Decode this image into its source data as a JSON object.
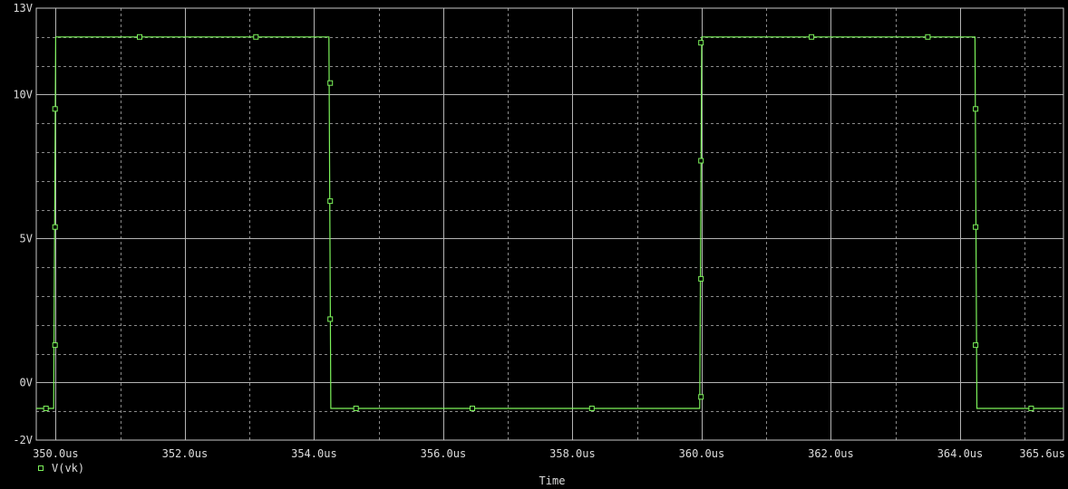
{
  "chart_data": {
    "type": "line",
    "xlabel": "Time",
    "ylabel": "",
    "xlim": [
      349.7,
      365.6
    ],
    "ylim": [
      -2,
      13
    ],
    "x_ticks": [
      {
        "value": 350.0,
        "label": "350.0us"
      },
      {
        "value": 352.0,
        "label": "352.0us"
      },
      {
        "value": 354.0,
        "label": "354.0us"
      },
      {
        "value": 356.0,
        "label": "356.0us"
      },
      {
        "value": 358.0,
        "label": "358.0us"
      },
      {
        "value": 360.0,
        "label": "360.0us"
      },
      {
        "value": 362.0,
        "label": "362.0us"
      },
      {
        "value": 364.0,
        "label": "364.0us"
      },
      {
        "value": 365.6,
        "label": "365.6us"
      }
    ],
    "y_ticks": [
      {
        "value": 13,
        "label": "13V"
      },
      {
        "value": 10,
        "label": "10V"
      },
      {
        "value": 5,
        "label": "5V"
      },
      {
        "value": 0,
        "label": "0V"
      },
      {
        "value": -2,
        "label": "-2V"
      }
    ],
    "grid": true,
    "legend_position": "bottom-left",
    "series": [
      {
        "name": "V(vk)",
        "color": "#7cf25a",
        "x": [
          349.7,
          349.97,
          350.0,
          354.23,
          354.26,
          359.97,
          360.0,
          364.23,
          364.26,
          365.6
        ],
        "y": [
          -0.9,
          -0.9,
          12.0,
          12.0,
          -0.9,
          -0.9,
          12.0,
          12.0,
          -0.9,
          -0.9
        ],
        "markers": {
          "x": [
            349.85,
            349.99,
            349.99,
            349.99,
            351.3,
            353.1,
            354.25,
            354.25,
            354.25,
            354.65,
            356.45,
            358.3,
            359.99,
            359.99,
            359.99,
            359.99,
            361.7,
            363.5,
            364.24,
            364.24,
            364.24,
            365.1
          ],
          "y": [
            -0.9,
            1.3,
            5.4,
            9.5,
            12.0,
            12.0,
            10.4,
            6.3,
            2.2,
            -0.9,
            -0.9,
            -0.9,
            -0.5,
            3.6,
            7.7,
            11.8,
            12.0,
            12.0,
            9.5,
            5.4,
            1.3,
            -0.9
          ]
        }
      }
    ]
  }
}
